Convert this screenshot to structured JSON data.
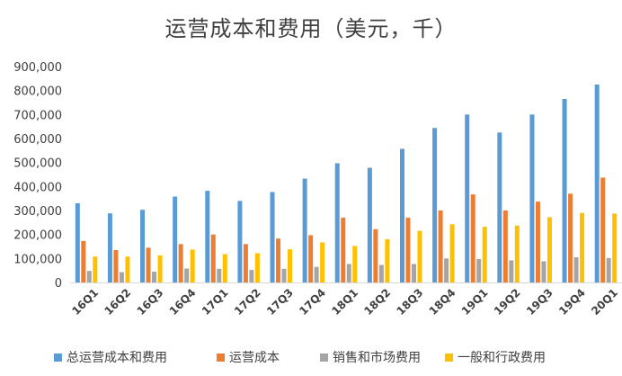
{
  "chart_data": {
    "type": "bar",
    "title": "运营成本和费用（美元，千）",
    "categories": [
      "16Q1",
      "16Q2",
      "16Q3",
      "16Q4",
      "17Q1",
      "17Q2",
      "17Q3",
      "17Q4",
      "18Q1",
      "18Q2",
      "18Q3",
      "18Q4",
      "19Q1",
      "19Q2",
      "19Q3",
      "19Q4",
      "20Q1"
    ],
    "series": [
      {
        "name": "总运营成本和费用",
        "color": "#5b9bd5",
        "values": [
          330000,
          288000,
          303000,
          358000,
          382000,
          340000,
          377000,
          433000,
          497000,
          478000,
          557000,
          644000,
          700000,
          625000,
          700000,
          765000,
          825000
        ]
      },
      {
        "name": "运营成本",
        "color": "#ed7d31",
        "values": [
          173000,
          135000,
          145000,
          160000,
          200000,
          160000,
          183000,
          197000,
          270000,
          222000,
          270000,
          300000,
          367000,
          300000,
          337000,
          370000,
          437000
        ]
      },
      {
        "name": "销售和市场费用",
        "color": "#a5a5a5",
        "values": [
          48000,
          43000,
          45000,
          58000,
          57000,
          52000,
          57000,
          65000,
          77000,
          73000,
          77000,
          100000,
          98000,
          92000,
          88000,
          105000,
          102000
        ]
      },
      {
        "name": "一般和行政费用",
        "color": "#ffc000",
        "values": [
          108000,
          108000,
          113000,
          137000,
          118000,
          122000,
          138000,
          167000,
          152000,
          180000,
          215000,
          243000,
          232000,
          237000,
          272000,
          290000,
          287000
        ]
      }
    ],
    "ylim": [
      0,
      900000
    ],
    "yticks": [
      "0",
      "100,000",
      "200,000",
      "300,000",
      "400,000",
      "500,000",
      "600,000",
      "700,000",
      "800,000",
      "900,000"
    ],
    "grid": false,
    "legend_position": "bottom"
  }
}
